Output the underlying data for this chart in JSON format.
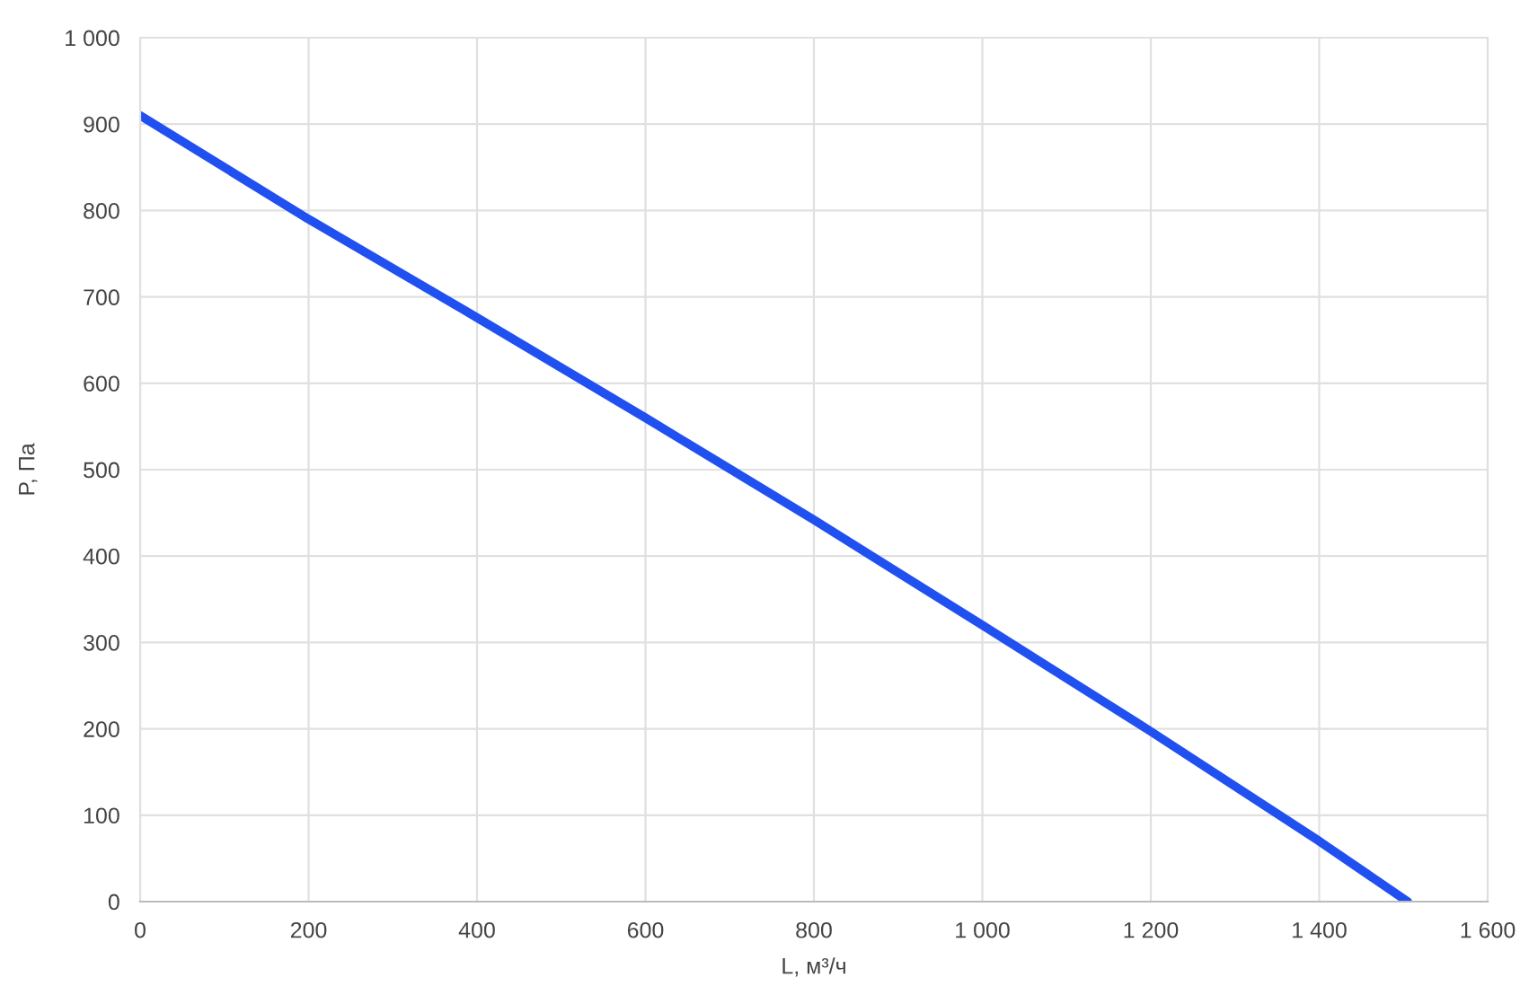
{
  "chart_data": {
    "type": "line",
    "xlabel": "L, м³/ч",
    "ylabel": "P, Па",
    "x": [
      0,
      200,
      400,
      600,
      800,
      1000,
      1200,
      1400,
      1505
    ],
    "series": [
      {
        "color": "#2150f0",
        "values": [
          910,
          790,
          676,
          560,
          442,
          320,
          197,
          70,
          0
        ]
      }
    ],
    "xlim": [
      0,
      1600
    ],
    "xticks": [
      0,
      200,
      400,
      600,
      800,
      {
        "value": 1000,
        "label": "1 000"
      },
      {
        "value": 1200,
        "label": "1 200"
      },
      {
        "value": 1400,
        "label": "1 400"
      },
      {
        "value": 1600,
        "label": "1 600"
      }
    ],
    "ylim": [
      0,
      1000
    ],
    "yticks": [
      0,
      100,
      200,
      300,
      400,
      500,
      600,
      700,
      800,
      900,
      {
        "value": 1000,
        "label": "1 000"
      }
    ],
    "grid": true,
    "legend": false,
    "marker": "none",
    "line_style": "solid"
  }
}
